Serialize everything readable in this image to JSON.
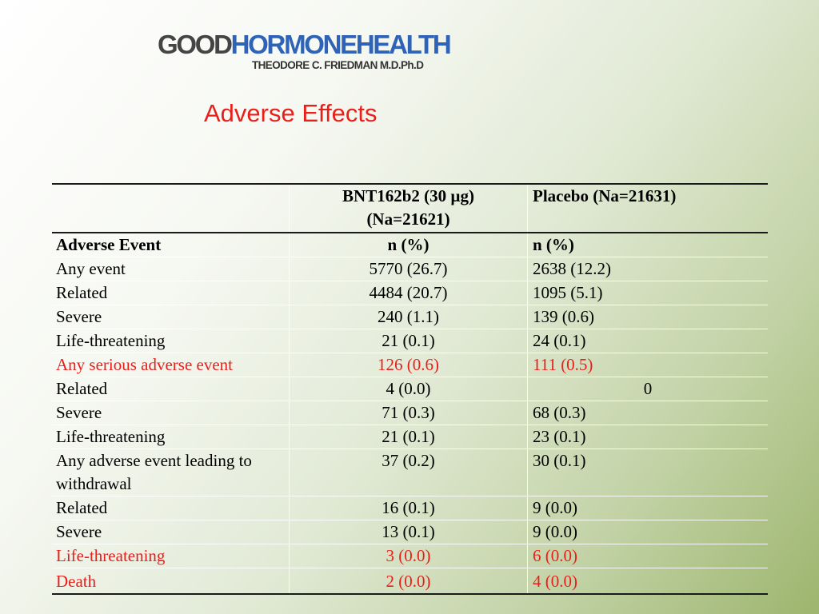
{
  "logo": {
    "part1": "GOOD",
    "part2": "HORMONEHEALTH",
    "subtitle": "THEODORE C. FRIEDMAN M.D.Ph.D"
  },
  "title": "Adverse Effects",
  "table": {
    "header": {
      "col1": "",
      "col2_line1": "BNT162b2 (30 µg)",
      "col2_line2": "(Na=21621)",
      "col3": "Placebo (Na=21631)"
    },
    "subheader": {
      "col1": "Adverse Event",
      "col2": "n (%)",
      "col3": "n (%)"
    },
    "rows": [
      {
        "label": "Any event",
        "bnt": "5770 (26.7)",
        "placebo": "2638 (12.2)"
      },
      {
        "label": "Related",
        "bnt": "4484 (20.7)",
        "placebo": "1095 (5.1)"
      },
      {
        "label": "Severe",
        "bnt": "240 (1.1)",
        "placebo": "139 (0.6)"
      },
      {
        "label": "Life-threatening",
        "bnt": "21 (0.1)",
        "placebo": "24 (0.1)"
      },
      {
        "label": "Any serious adverse event",
        "bnt": "126 (0.6)",
        "placebo": "111 (0.5)"
      },
      {
        "label": "Related",
        "bnt": "4 (0.0)",
        "placebo": "0"
      },
      {
        "label": "Severe",
        "bnt": "71 (0.3)",
        "placebo": "68 (0.3)"
      },
      {
        "label": "Life-threatening",
        "bnt": "21 (0.1)",
        "placebo": "23 (0.1)"
      },
      {
        "label": "Any adverse event leading to withdrawal",
        "bnt": "37 (0.2)",
        "placebo": "30 (0.1)"
      },
      {
        "label": "Related",
        "bnt": "16 (0.1)",
        "placebo": "9 (0.0)"
      },
      {
        "label": "Severe",
        "bnt": "13 (0.1)",
        "placebo": "9 (0.0)"
      },
      {
        "label": "Life-threatening",
        "bnt": "3 (0.0)",
        "placebo": "6 (0.0)"
      },
      {
        "label": "Death",
        "bnt": "2 (0.0)",
        "placebo": "4 (0.0)"
      }
    ]
  },
  "colors": {
    "accent_red": "#e8201c",
    "logo_blue": "#2e63b8",
    "logo_gray": "#444444"
  }
}
